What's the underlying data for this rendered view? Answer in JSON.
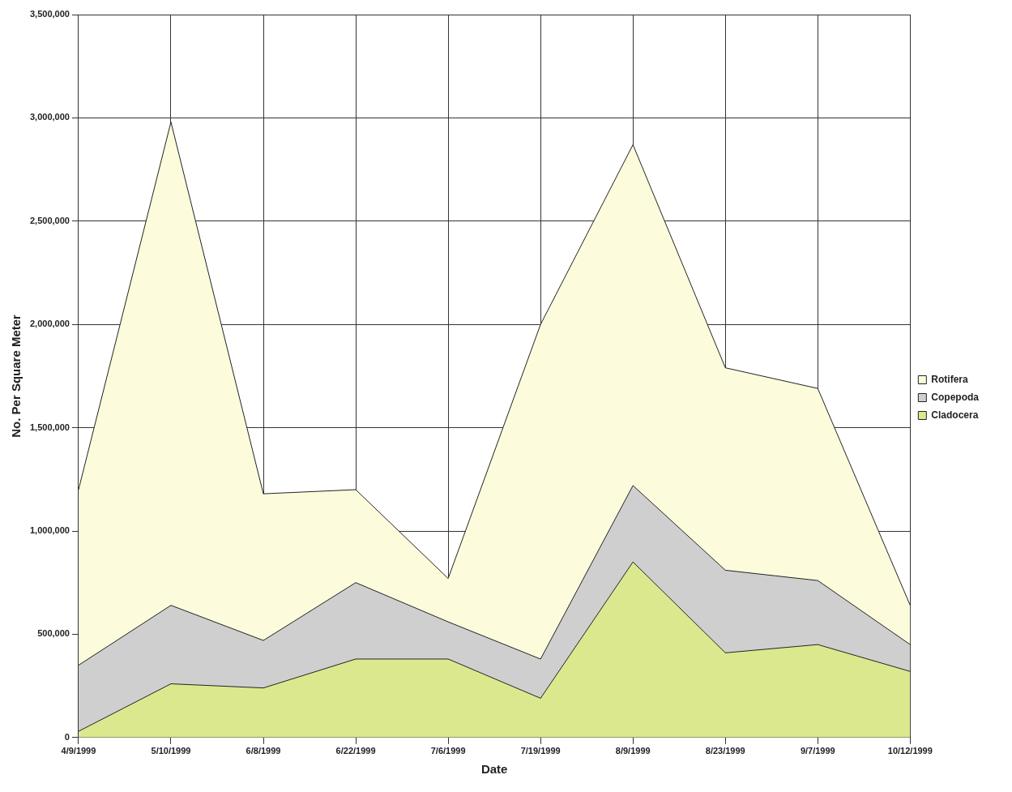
{
  "chart_data": {
    "type": "area",
    "stacked": true,
    "xlabel": "Date",
    "ylabel": "No. Per Square Meter",
    "categories": [
      "4/9/1999",
      "5/10/1999",
      "6/8/1999",
      "6/22/1999",
      "7/6/1999",
      "7/19/1999",
      "8/9/1999",
      "8/23/1999",
      "9/7/1999",
      "10/12/1999"
    ],
    "series": [
      {
        "name": "Cladocera",
        "color": "#dbe88e",
        "values": [
          30000,
          260000,
          240000,
          380000,
          380000,
          190000,
          850000,
          410000,
          450000,
          320000
        ]
      },
      {
        "name": "Copepoda",
        "color": "#cfcfcf",
        "values": [
          320000,
          380000,
          230000,
          370000,
          180000,
          190000,
          370000,
          400000,
          310000,
          130000
        ]
      },
      {
        "name": "Rotifera",
        "color": "#fcfcdc",
        "values": [
          850000,
          2340000,
          710000,
          450000,
          210000,
          1620000,
          1650000,
          980000,
          930000,
          190000
        ]
      }
    ],
    "ylim": [
      0,
      3500000
    ],
    "yticks": [
      0,
      {
        "value": 500000,
        "label": "500,000"
      },
      {
        "value": 1000000,
        "label": "1,000,000"
      },
      {
        "value": 1500000,
        "label": "1,500,000"
      },
      {
        "value": 2000000,
        "label": "2,000,000"
      },
      {
        "value": 2500000,
        "label": "2,500,000"
      },
      {
        "value": 3000000,
        "label": "3,000,000"
      },
      {
        "value": 3500000,
        "label": "3,500,000"
      }
    ],
    "grid": true,
    "legend": "right"
  }
}
